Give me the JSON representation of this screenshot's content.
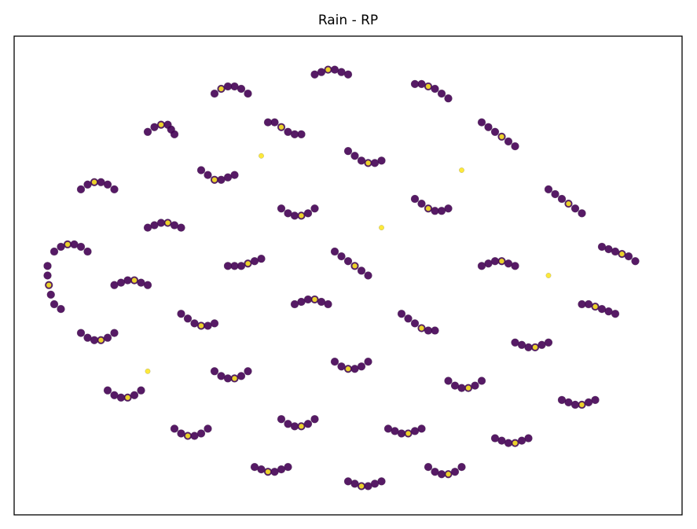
{
  "chart_data": {
    "type": "scatter",
    "title": "Rain - RP",
    "xlim": [
      0,
      100
    ],
    "ylim": [
      0,
      100
    ],
    "series": [
      {
        "color": "#440154",
        "x": [
          30,
          31,
          32,
          33,
          34,
          35,
          45,
          46,
          47,
          48,
          49,
          50,
          60,
          61,
          62,
          63,
          64,
          65,
          20,
          21,
          22,
          23,
          23.5,
          24,
          38,
          39,
          40,
          41,
          42,
          43,
          70,
          71,
          72,
          73,
          74,
          75,
          10,
          11,
          12,
          13,
          14,
          15,
          28,
          29,
          30,
          31,
          32,
          33,
          50,
          51,
          52,
          53,
          54,
          55,
          80,
          81,
          82,
          83,
          84,
          85,
          6,
          7,
          8,
          9,
          10,
          11,
          20,
          21,
          22,
          23,
          24,
          25,
          40,
          41,
          42,
          43,
          44,
          45,
          60,
          61,
          62,
          63,
          64,
          65,
          88,
          89,
          90,
          91,
          92,
          93,
          5,
          5,
          5.2,
          5.5,
          6,
          7,
          15,
          16,
          17,
          18,
          19,
          20,
          32,
          33,
          34,
          35,
          36,
          37,
          48,
          49,
          50,
          51,
          52,
          53,
          70,
          71,
          72,
          73,
          74,
          75,
          85,
          86,
          87,
          88,
          89,
          90,
          10,
          11,
          12,
          13,
          14,
          15,
          25,
          26,
          27,
          28,
          29,
          30,
          42,
          43,
          44,
          45,
          46,
          47,
          58,
          59,
          60,
          61,
          62,
          63,
          75,
          76,
          77,
          78,
          79,
          80,
          14,
          15,
          16,
          17,
          18,
          19,
          30,
          31,
          32,
          33,
          34,
          35,
          48,
          49,
          50,
          51,
          52,
          53,
          65,
          66,
          67,
          68,
          69,
          70,
          82,
          83,
          84,
          85,
          86,
          87,
          24,
          25,
          26,
          27,
          28,
          29,
          40,
          41,
          42,
          43,
          44,
          45,
          56,
          57,
          58,
          59,
          60,
          61,
          72,
          73,
          74,
          75,
          76,
          77,
          36,
          37,
          38,
          39,
          40,
          41,
          50,
          51,
          52,
          53,
          54,
          55,
          62,
          63,
          64,
          65,
          66,
          67
        ],
        "y": [
          88,
          89,
          89.5,
          89.5,
          89,
          88,
          92,
          92.5,
          93,
          93,
          92.5,
          92,
          90,
          90,
          89.5,
          89,
          88,
          87,
          80,
          81,
          81.5,
          81.5,
          80.5,
          79.5,
          82,
          82,
          81,
          80,
          79.5,
          79.5,
          82,
          81,
          80,
          79,
          78,
          77,
          68,
          69,
          69.5,
          69.5,
          69,
          68,
          72,
          71,
          70,
          70,
          70.5,
          71,
          76,
          75,
          74,
          73.5,
          73.5,
          74,
          68,
          67,
          66,
          65,
          64,
          63,
          55,
          56,
          56.5,
          56.5,
          56,
          55,
          60,
          60.5,
          61,
          61,
          60.5,
          60,
          64,
          63,
          62.5,
          62.5,
          63,
          64,
          66,
          65,
          64,
          63.5,
          63.5,
          64,
          56,
          55.5,
          55,
          54.5,
          54,
          53,
          52,
          50,
          48,
          46,
          44,
          43,
          48,
          48.5,
          49,
          49,
          48.5,
          48,
          52,
          52,
          52,
          52.5,
          53,
          53.5,
          55,
          54,
          53,
          52,
          51,
          50,
          52,
          52.5,
          53,
          53,
          52.5,
          52,
          44,
          44,
          43.5,
          43,
          42.5,
          42,
          38,
          37,
          36.5,
          36.5,
          37,
          38,
          42,
          41,
          40,
          39.5,
          39.5,
          40,
          44,
          44.5,
          45,
          45,
          44.5,
          44,
          42,
          41,
          40,
          39,
          38.5,
          38.5,
          36,
          35.5,
          35,
          35,
          35.5,
          36,
          26,
          25,
          24.5,
          24.5,
          25,
          26,
          30,
          29,
          28.5,
          28.5,
          29,
          30,
          32,
          31,
          30.5,
          30.5,
          31,
          32,
          28,
          27,
          26.5,
          26.5,
          27,
          28,
          24,
          23.5,
          23,
          23,
          23.5,
          24,
          18,
          17,
          16.5,
          16.5,
          17,
          18,
          20,
          19,
          18.5,
          18.5,
          19,
          20,
          18,
          17.5,
          17,
          17,
          17.5,
          18,
          16,
          15.5,
          15,
          15,
          15.5,
          16,
          10,
          9.5,
          9,
          9,
          9.5,
          10,
          7,
          6.5,
          6,
          6,
          6.5,
          7,
          10,
          9,
          8.5,
          8.5,
          9,
          10
        ]
      },
      {
        "color": "#fde725",
        "x": [
          31,
          47,
          62,
          22,
          40,
          73,
          12,
          30,
          53,
          83,
          8,
          23,
          43,
          62,
          91,
          5.2,
          18,
          35,
          51,
          73,
          87,
          13,
          28,
          45,
          61,
          78,
          17,
          33,
          50,
          68,
          85,
          26,
          43,
          59,
          75,
          38,
          52,
          65,
          55,
          37,
          67,
          20,
          80
        ],
        "y": [
          89,
          93,
          89.5,
          81.5,
          81,
          79,
          69.5,
          70,
          73.5,
          65,
          56.5,
          61,
          62.5,
          64,
          54.5,
          48,
          49,
          52.5,
          52,
          53,
          43.5,
          36.5,
          39.5,
          45,
          39,
          35,
          24.5,
          28.5,
          30.5,
          26.5,
          23,
          16.5,
          18.5,
          17,
          15,
          9,
          6,
          8.5,
          60,
          75,
          72,
          30,
          50
        ]
      }
    ]
  }
}
